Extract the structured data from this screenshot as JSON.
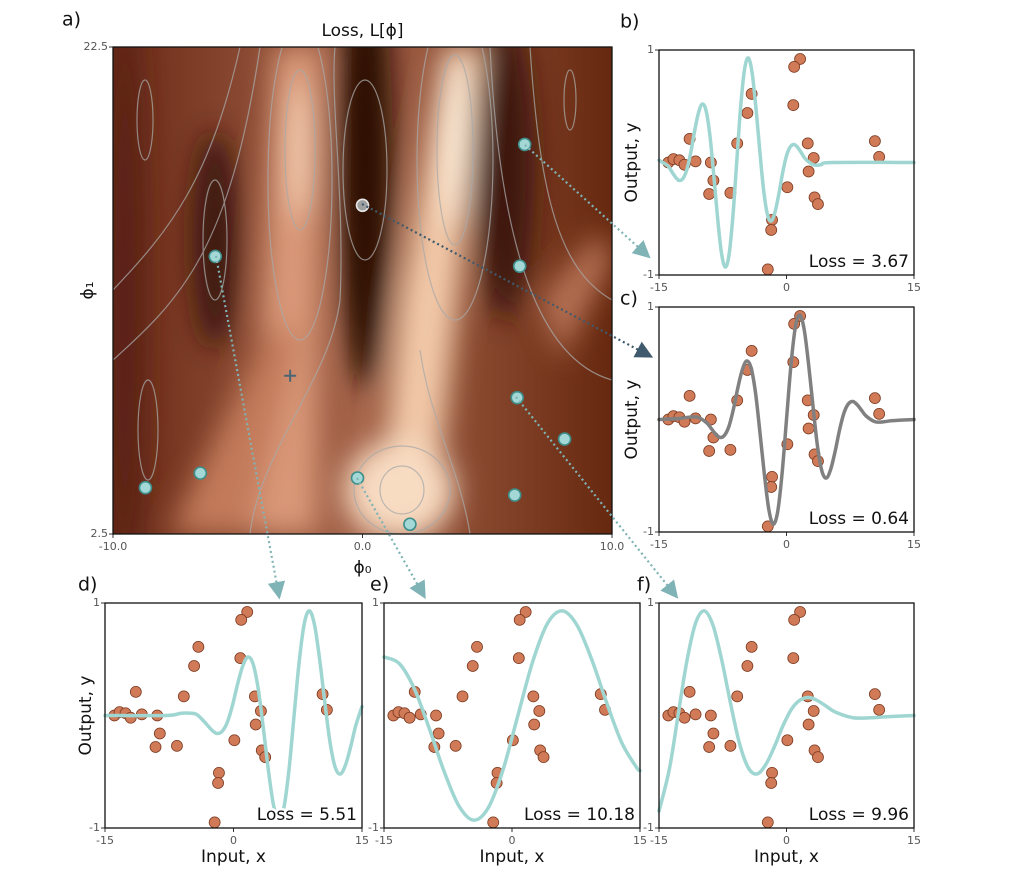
{
  "data_points": {
    "color": "#d07a58",
    "edgecolor": "#7a3a20",
    "x": [
      1.6,
      0.9,
      -4.1,
      -4.6,
      0.8,
      -11.4,
      -5.8,
      2.5,
      10.4,
      10.9,
      -13.9,
      -13.3,
      -12.6,
      -12.0,
      -10.7,
      -8.9,
      -8.6,
      -9.1,
      -6.6,
      0.1,
      3.2,
      2.6,
      3.3,
      3.7,
      -1.7,
      -1.8,
      -2.2
    ],
    "y": [
      0.92,
      0.85,
      0.61,
      0.44,
      0.51,
      0.21,
      0.17,
      0.17,
      0.19,
      0.05,
      0.0,
      0.03,
      0.02,
      -0.02,
      0.01,
      0.0,
      -0.16,
      -0.28,
      -0.27,
      -0.22,
      0.04,
      -0.08,
      -0.31,
      -0.37,
      -0.51,
      -0.6,
      -0.95
    ]
  },
  "chart_data": [
    {
      "type": "scatter",
      "panel_label": "a)",
      "title": "Loss, L[ϕ]",
      "xlabel": "ϕ₀",
      "ylabel": "ϕ₁",
      "xlim": [
        -10,
        10
      ],
      "ylim": [
        2.5,
        22.5
      ],
      "xticks": [
        {
          "value": -10,
          "label": "-10.0"
        },
        {
          "value": 0,
          "label": "0.0"
        },
        {
          "value": 10,
          "label": "10.0"
        }
      ],
      "yticks": [
        2.5,
        22.5
      ],
      "series": [
        {
          "color": "#a4d8d6",
          "edgecolor": "#3e8e8a",
          "marker": "circle",
          "x": [
            6.5,
            -5.9,
            6.3,
            6.2,
            8.1,
            -0.2,
            -6.5,
            -8.7,
            6.1,
            1.9
          ],
          "values": [
            18.5,
            13.9,
            13.5,
            8.1,
            6.4,
            4.8,
            5.0,
            4.4,
            4.1,
            2.9
          ]
        },
        {
          "color": "#a0a0a0",
          "edgecolor": "#e6e6e6",
          "marker": "circle",
          "x": [
            0.0
          ],
          "values": [
            16.0
          ]
        },
        {
          "color": "#4a6474",
          "marker": "plus",
          "x": [
            -2.9
          ],
          "values": [
            9.0
          ]
        }
      ]
    },
    {
      "type": "line",
      "panel_label": "b)",
      "ylabel": "Output, y",
      "annotation": "Loss = 3.67",
      "xlim": [
        -15,
        15
      ],
      "ylim": [
        -1,
        1
      ],
      "xticks": [
        -15,
        0,
        15
      ],
      "yticks": [
        -1,
        1
      ],
      "series": [
        {
          "color": "#9fd6d2",
          "x": [
            -15,
            -13.96,
            -13.51,
            -13.06,
            -12.61,
            -12.16,
            -11.71,
            -11.26,
            -10.81,
            -10.36,
            -9.91,
            -9.46,
            -9.01,
            -8.56,
            -8.11,
            -7.66,
            -7.21,
            -6.76,
            -6.31,
            -5.86,
            -5.41,
            -4.95,
            -4.5,
            -4.05,
            -3.6,
            -3.15,
            -2.7,
            -2.25,
            -1.8,
            -1.35,
            -0.9,
            -0.45,
            0,
            0.45,
            0.9,
            1.35,
            1.8,
            2.25,
            3.15,
            4.05,
            5.41,
            15
          ],
          "values": [
            0.02,
            -0.03,
            -0.08,
            -0.13,
            -0.16,
            -0.14,
            -0.06,
            0.09,
            0.28,
            0.44,
            0.52,
            0.46,
            0.24,
            -0.11,
            -0.49,
            -0.8,
            -0.93,
            -0.82,
            -0.48,
            0,
            0.48,
            0.82,
            0.93,
            0.8,
            0.49,
            0.11,
            -0.24,
            -0.46,
            -0.52,
            -0.44,
            -0.28,
            -0.09,
            0.06,
            0.14,
            0.16,
            0.13,
            0.08,
            0.03,
            -0.02,
            -0.02,
            0,
            0
          ]
        }
      ]
    },
    {
      "type": "line",
      "panel_label": "c)",
      "ylabel": "Output, y",
      "annotation": "Loss = 0.64",
      "xlim": [
        -15,
        15
      ],
      "ylim": [
        -1,
        1
      ],
      "xticks": [
        -15,
        0,
        15
      ],
      "yticks": [
        -1,
        1
      ],
      "series": [
        {
          "color": "#808080",
          "x": [
            -15,
            -12.5,
            -11.46,
            -10.42,
            -9.38,
            -8.85,
            -8.33,
            -7.81,
            -7.29,
            -6.77,
            -6.25,
            -5.73,
            -5.21,
            -4.69,
            -4.17,
            -3.65,
            -3.13,
            -2.6,
            -2.08,
            -1.56,
            -1.04,
            -0.52,
            0,
            0.52,
            1.04,
            1.56,
            2.08,
            2.6,
            3.13,
            3.65,
            4.17,
            4.69,
            5.21,
            5.73,
            6.25,
            6.77,
            7.29,
            7.81,
            8.33,
            8.85,
            9.38,
            10.42,
            11.46,
            12.5,
            15
          ],
          "values": [
            0,
            0.01,
            0.02,
            0.02,
            -0.03,
            -0.08,
            -0.13,
            -0.16,
            -0.14,
            -0.06,
            0.09,
            0.28,
            0.44,
            0.52,
            0.46,
            0.24,
            -0.11,
            -0.49,
            -0.8,
            -0.93,
            -0.82,
            -0.48,
            0,
            0.48,
            0.82,
            0.93,
            0.8,
            0.49,
            0.11,
            -0.24,
            -0.46,
            -0.52,
            -0.44,
            -0.28,
            -0.09,
            0.06,
            0.14,
            0.16,
            0.13,
            0.08,
            0.03,
            -0.02,
            -0.02,
            -0.01,
            0
          ]
        }
      ]
    },
    {
      "type": "line",
      "panel_label": "d)",
      "ylabel": "Output, y",
      "xlabel": "Input, x",
      "annotation": "Loss = 5.51",
      "xlim": [
        -15,
        15
      ],
      "ylim": [
        -1,
        1
      ],
      "xticks": [
        -15,
        0,
        15
      ],
      "yticks": [
        -1,
        1
      ],
      "series": [
        {
          "color": "#9fd6d2",
          "x": [
            -15,
            -7.91,
            -6.11,
            -4.92,
            -4.32,
            -3.72,
            -3.12,
            -2.52,
            -1.92,
            -1.32,
            -0.72,
            -0.12,
            0.48,
            1.08,
            1.68,
            2.28,
            2.88,
            3.48,
            4.08,
            4.68,
            5.28,
            5.88,
            6.48,
            7.07,
            7.67,
            8.27,
            8.87,
            9.47,
            10.07,
            10.67,
            11.27,
            11.87,
            12.47,
            13.07,
            13.67,
            14.27,
            15
          ],
          "values": [
            0,
            0,
            0.02,
            0.02,
            0.01,
            -0.03,
            -0.08,
            -0.13,
            -0.16,
            -0.14,
            -0.06,
            0.09,
            0.28,
            0.44,
            0.52,
            0.46,
            0.24,
            -0.11,
            -0.49,
            -0.8,
            -0.93,
            -0.82,
            -0.48,
            0,
            0.48,
            0.82,
            0.93,
            0.8,
            0.49,
            0.11,
            -0.24,
            -0.46,
            -0.52,
            -0.44,
            -0.28,
            -0.09,
            0.08
          ]
        }
      ]
    },
    {
      "type": "line",
      "panel_label": "e)",
      "xlabel": "Input, x",
      "annotation": "Loss = 10.18",
      "xlim": [
        -15,
        15
      ],
      "ylim": [
        -1,
        1
      ],
      "xticks": [
        -15,
        0,
        15
      ],
      "yticks": [
        -1,
        1
      ],
      "series": [
        {
          "color": "#9fd6d2",
          "x": [
            -15,
            -13.19,
            -11.46,
            -9.72,
            -7.99,
            -6.25,
            -4.51,
            -2.78,
            -1.04,
            0.69,
            2.43,
            4.17,
            5.9,
            7.64,
            9.38,
            11.11,
            12.85,
            14.58,
            15
          ],
          "values": [
            0.52,
            0.46,
            0.24,
            -0.11,
            -0.49,
            -0.8,
            -0.93,
            -0.82,
            -0.48,
            0,
            0.48,
            0.82,
            0.93,
            0.8,
            0.49,
            0.11,
            -0.24,
            -0.46,
            -0.49
          ]
        }
      ]
    },
    {
      "type": "line",
      "panel_label": "f)",
      "xlabel": "Input, x",
      "annotation": "Loss = 9.96",
      "xlim": [
        -15,
        15
      ],
      "ylim": [
        -1,
        1
      ],
      "xticks": [
        -15,
        0,
        15
      ],
      "yticks": [
        -1,
        1
      ],
      "series": [
        {
          "color": "#9fd6d2",
          "x": [
            -15,
            -13.79,
            -12.76,
            -11.73,
            -10.7,
            -9.67,
            -8.64,
            -7.61,
            -6.59,
            -5.56,
            -4.53,
            -3.5,
            -2.47,
            -1.44,
            -0.41,
            0.62,
            1.65,
            2.68,
            3.7,
            4.73,
            5.76,
            7.82,
            9.88,
            11.94,
            15
          ],
          "values": [
            -0.85,
            -0.48,
            0,
            0.48,
            0.82,
            0.93,
            0.8,
            0.49,
            0.11,
            -0.24,
            -0.46,
            -0.52,
            -0.44,
            -0.28,
            -0.09,
            0.06,
            0.14,
            0.16,
            0.13,
            0.08,
            0.03,
            -0.02,
            -0.02,
            -0.01,
            0
          ]
        }
      ]
    }
  ]
}
